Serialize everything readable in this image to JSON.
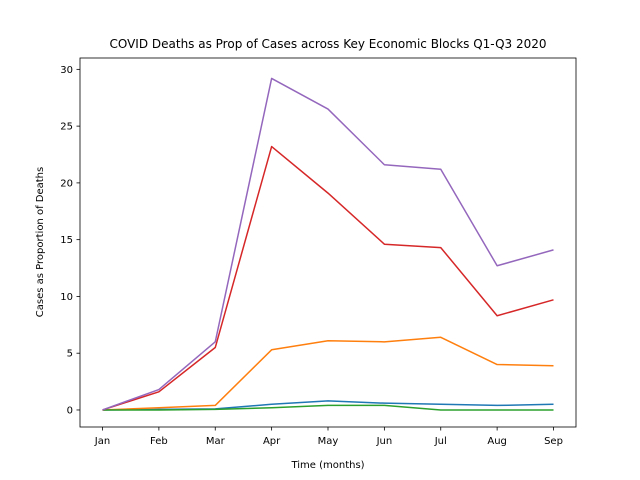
{
  "chart_data": {
    "type": "line",
    "title": "COVID Deaths as Prop of Cases across Key Economic Blocks Q1-Q3 2020",
    "xlabel": "Time (months)",
    "ylabel": "Cases as Proportion of Deaths",
    "categories": [
      "Jan",
      "Feb",
      "Mar",
      "Apr",
      "May",
      "Jun",
      "Jul",
      "Aug",
      "Sep"
    ],
    "ylim": [
      -1.5,
      31.0
    ],
    "yticks": [
      0,
      5,
      10,
      15,
      20,
      25,
      30
    ],
    "grid": false,
    "series": [
      {
        "color": "#1f77b4",
        "values": [
          0.0,
          0.05,
          0.1,
          0.5,
          0.8,
          0.6,
          0.5,
          0.4,
          0.5
        ]
      },
      {
        "color": "#ff7f0e",
        "values": [
          0.0,
          0.2,
          0.4,
          5.3,
          6.1,
          6.0,
          6.4,
          4.0,
          3.9
        ]
      },
      {
        "color": "#2ca02c",
        "values": [
          0.0,
          0.0,
          0.05,
          0.2,
          0.4,
          0.4,
          0.0,
          0.0,
          0.0
        ]
      },
      {
        "color": "#d62728",
        "values": [
          0.0,
          1.6,
          5.5,
          23.2,
          19.1,
          14.6,
          14.3,
          8.3,
          9.7
        ]
      },
      {
        "color": "#9467bd",
        "values": [
          0.0,
          1.8,
          6.0,
          29.2,
          26.5,
          21.6,
          21.2,
          12.7,
          14.1
        ]
      }
    ]
  }
}
